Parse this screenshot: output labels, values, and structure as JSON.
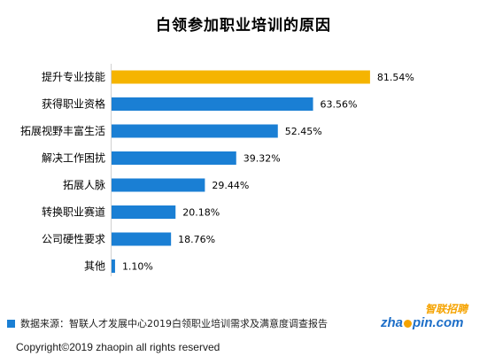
{
  "chart_data": {
    "type": "bar",
    "orientation": "horizontal",
    "title": "白领参加职业培训的原因",
    "categories": [
      "提升专业技能",
      "获得职业资格",
      "拓展视野丰富生活",
      "解决工作困扰",
      "拓展人脉",
      "转换职业赛道",
      "公司硬性要求",
      "其他"
    ],
    "values": [
      81.54,
      63.56,
      52.45,
      39.32,
      29.44,
      20.18,
      18.76,
      1.1
    ],
    "value_labels": [
      "81.54%",
      "63.56%",
      "52.45%",
      "39.32%",
      "29.44%",
      "20.18%",
      "18.76%",
      "1.10%"
    ],
    "xlim": [
      0,
      100
    ],
    "grid": false,
    "highlight_index": 0,
    "colors": {
      "highlight": "#f5b400",
      "bar": "#1a7fd4",
      "axis": "#d0d0d0"
    }
  },
  "footer": {
    "source": "数据来源：智联人才发展中心2019白领职业培训需求及满意度调查报告",
    "copyright": "Copyright©2019 zhaopin all rights reserved"
  },
  "logo": {
    "word_pre": "zha",
    "word_post": "pin.com",
    "brand": "智联招聘"
  }
}
